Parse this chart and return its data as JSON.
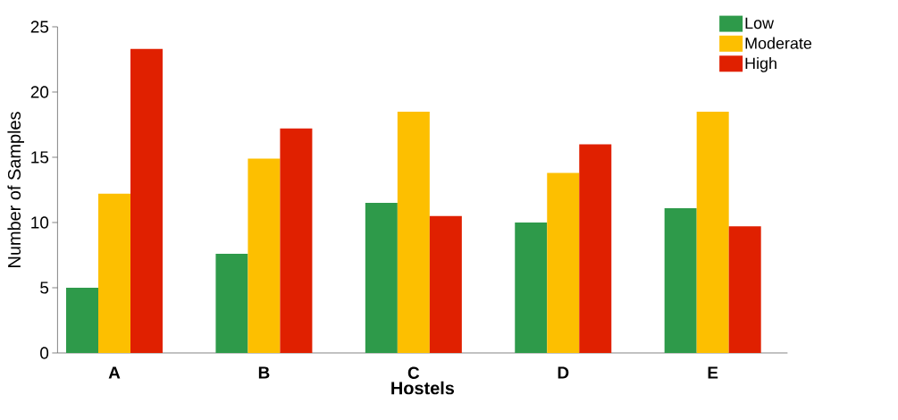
{
  "chart_data": {
    "type": "bar",
    "xlabel": "Hostels",
    "ylabel": "Number of Samples",
    "categories": [
      "A",
      "B",
      "C",
      "D",
      "E"
    ],
    "series": [
      {
        "name": "Low",
        "color": "#2e9a4a",
        "values": [
          5.0,
          7.6,
          11.5,
          10.0,
          11.1
        ]
      },
      {
        "name": "Moderate",
        "color": "#fdbf00",
        "values": [
          12.2,
          14.9,
          18.5,
          13.8,
          18.5
        ]
      },
      {
        "name": "High",
        "color": "#e02000",
        "values": [
          23.3,
          17.2,
          10.5,
          16.0,
          9.7
        ]
      }
    ],
    "ylim": [
      0,
      25
    ],
    "yticks": [
      0,
      5,
      10,
      15,
      20,
      25
    ],
    "legend": "top right"
  }
}
